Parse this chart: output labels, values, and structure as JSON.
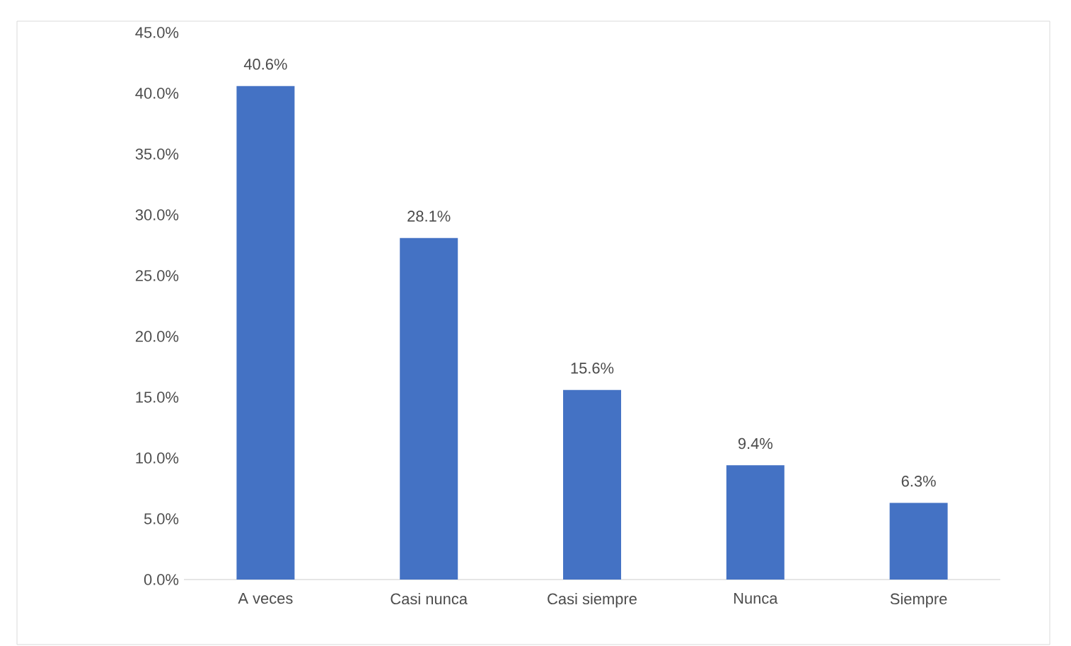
{
  "chart_data": {
    "type": "bar",
    "categories": [
      "A veces",
      "Casi nunca",
      "Casi siempre",
      "Nunca",
      "Siempre"
    ],
    "values": [
      40.6,
      28.1,
      15.6,
      9.4,
      6.3
    ],
    "value_labels": [
      "40.6%",
      "28.1%",
      "15.6%",
      "9.4%",
      "6.3%"
    ],
    "color": "#4472c4",
    "ylim": [
      0,
      45
    ],
    "yticks": [
      {
        "value": 0,
        "label": "0.0%"
      },
      {
        "value": 5,
        "label": "5.0%"
      },
      {
        "value": 10,
        "label": "10.0%"
      },
      {
        "value": 15,
        "label": "15.0%"
      },
      {
        "value": 20,
        "label": "20.0%"
      },
      {
        "value": 25,
        "label": "25.0%"
      },
      {
        "value": 30,
        "label": "30.0%"
      },
      {
        "value": 35,
        "label": "35.0%"
      },
      {
        "value": 40,
        "label": "40.0%"
      },
      {
        "value": 45,
        "label": "45.0%"
      }
    ],
    "grid": false
  }
}
